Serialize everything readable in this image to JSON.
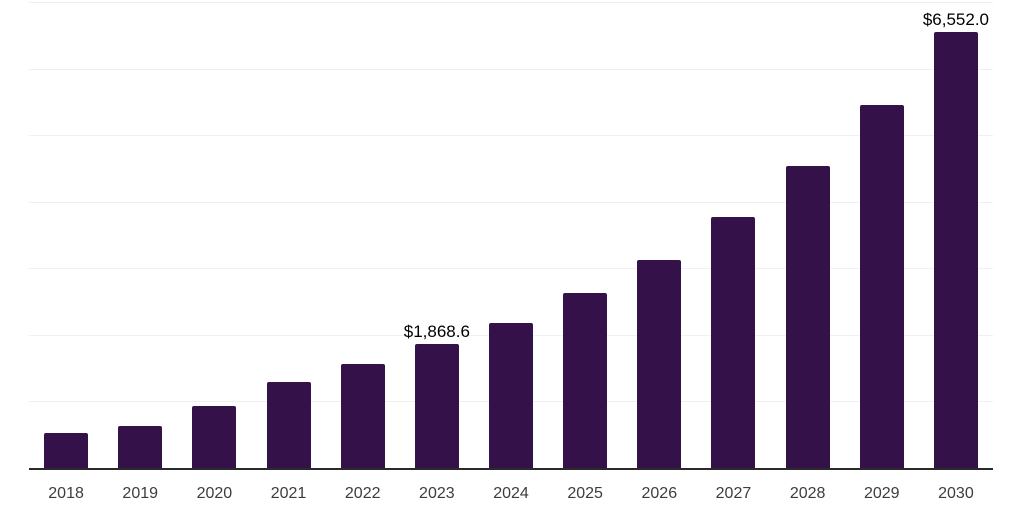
{
  "chart_data": {
    "type": "bar",
    "title": "",
    "xlabel": "",
    "ylabel": "",
    "categories": [
      "2018",
      "2019",
      "2020",
      "2021",
      "2022",
      "2023",
      "2024",
      "2025",
      "2026",
      "2027",
      "2028",
      "2029",
      "2030"
    ],
    "values": [
      530,
      630,
      930,
      1285,
      1565,
      1868.6,
      2185,
      2630,
      3130,
      3770,
      4530,
      5450,
      6552
    ],
    "labeled_values": {
      "2023": 1868.6,
      "2030": 6552.0
    },
    "data_labels": [
      {
        "category": "2023",
        "index": 5,
        "text": "$1,868.6"
      },
      {
        "category": "2030",
        "index": 12,
        "text": "$6,552.0"
      }
    ],
    "ylim": [
      0,
      7000
    ],
    "grid_interval": 1000,
    "grid": true,
    "legend": false,
    "bar_color": "#35114A",
    "value_unit_prefix": "$"
  },
  "style": {
    "background_color": "#ffffff",
    "gridline_color": "#f0f0f1",
    "axis_line_color": "#2b2b2b",
    "tick_label_color": "#3d3d3d",
    "value_label_color": "#000000"
  }
}
